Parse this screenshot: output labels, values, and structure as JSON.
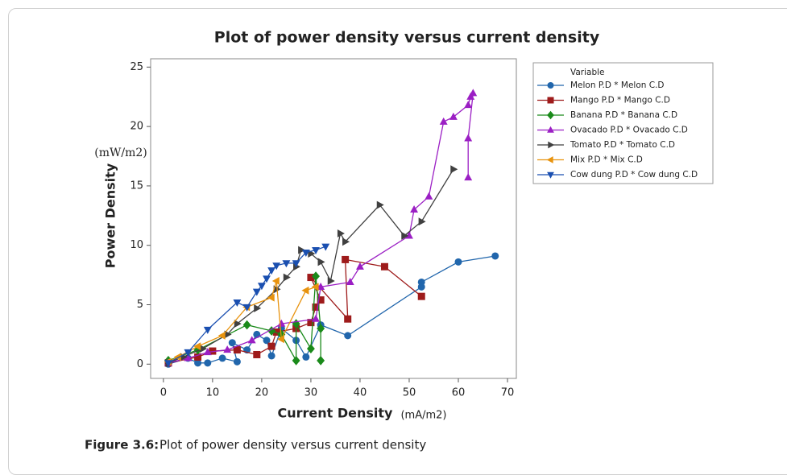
{
  "chart_data": {
    "type": "line",
    "title": "Plot of power density versus current density",
    "xlabel": "Current Density",
    "xunit": "(mA/m2)",
    "ylabel": "Power Density",
    "yunit": "(mW/m2)",
    "legend_title": "Variable",
    "legend": "outside-right",
    "xlim": [
      -2.6,
      71.8
    ],
    "ylim": [
      -1.2,
      25.7
    ],
    "xticks": [
      0,
      10,
      20,
      30,
      40,
      50,
      60,
      70
    ],
    "yticks": [
      0,
      5,
      10,
      15,
      20,
      25
    ],
    "series": [
      {
        "name": "Melon P.D * Melon C.D",
        "color": "#2166ac",
        "marker": "circle",
        "x": [
          1,
          5,
          7,
          9,
          12,
          15,
          14,
          17,
          19,
          21,
          22,
          24,
          27,
          29,
          32,
          37.5,
          52.5,
          52.5,
          60,
          67.5
        ],
        "values": [
          0,
          0.5,
          0.1,
          0.1,
          0.5,
          0.2,
          1.8,
          1.2,
          2.5,
          2,
          0.7,
          3,
          2,
          0.6,
          3.3,
          2.4,
          6.5,
          6.9,
          8.6,
          9.1
        ]
      },
      {
        "name": "Mango P.D * Mango C.D",
        "color": "#9e1b1b",
        "marker": "square",
        "x": [
          1,
          7,
          10,
          15,
          19,
          22,
          23,
          27,
          30,
          31,
          32,
          30,
          37.5,
          37,
          45,
          52.5
        ],
        "values": [
          0.1,
          0.6,
          1.1,
          1.2,
          0.8,
          1.5,
          2.7,
          3,
          3.5,
          4.8,
          5.4,
          7.3,
          3.8,
          8.8,
          8.2,
          5.7
        ]
      },
      {
        "name": "Banana P.D * Banana C.D",
        "color": "#1a8a1a",
        "marker": "diamond",
        "x": [
          1,
          7,
          17,
          22,
          24,
          27,
          27,
          30,
          31,
          32,
          32
        ],
        "values": [
          0.3,
          1.2,
          3.3,
          2.8,
          2.5,
          0.3,
          3.4,
          1.3,
          7.4,
          3,
          0.3
        ]
      },
      {
        "name": "Ovacado P.D * Ovacado C.D",
        "color": "#9b1fc4",
        "marker": "triangle-up",
        "x": [
          1,
          5,
          9,
          13,
          18,
          24,
          31,
          32,
          38,
          40,
          50,
          51,
          54,
          57,
          59,
          62,
          62.5,
          63,
          62,
          62
        ],
        "values": [
          0.1,
          0.5,
          1,
          1.2,
          2,
          3.4,
          3.8,
          6.5,
          6.9,
          8.2,
          10.8,
          13,
          14.1,
          20.4,
          20.8,
          21.8,
          22.5,
          22.8,
          19,
          15.7
        ]
      },
      {
        "name": "Tomato P.D * Tomato C.D",
        "color": "#404040",
        "marker": "triangle-right",
        "x": [
          1,
          4,
          8,
          13,
          15,
          19,
          23,
          25,
          27,
          28,
          30,
          32,
          34,
          36,
          37,
          44,
          49,
          52.5,
          59
        ],
        "values": [
          0.1,
          0.6,
          1.3,
          2.5,
          3.4,
          4.7,
          6.3,
          7.3,
          8.2,
          9.6,
          9.3,
          8.6,
          7,
          11,
          10.3,
          13.4,
          10.8,
          12,
          16.4
        ]
      },
      {
        "name": "Mix P.D * Mix C.D",
        "color": "#e8930e",
        "marker": "triangle-left",
        "x": [
          1,
          3,
          7,
          12,
          17,
          22,
          23,
          24,
          29,
          31
        ],
        "values": [
          0.2,
          0.6,
          1.5,
          2.4,
          4.8,
          5.6,
          7,
          2.1,
          6.2,
          6.5
        ]
      },
      {
        "name": "Cow dung P.D * Cow dung C.D",
        "color": "#1a4fb0",
        "marker": "triangle-down",
        "x": [
          1,
          5,
          9,
          15,
          17,
          19,
          20,
          21,
          22,
          23,
          25,
          27,
          29,
          31,
          33
        ],
        "values": [
          0.1,
          1,
          2.9,
          5.2,
          4.8,
          6.1,
          6.6,
          7.2,
          7.9,
          8.3,
          8.5,
          8.5,
          9.4,
          9.6,
          9.9
        ]
      }
    ]
  },
  "caption": {
    "label": "Figure 3.6:",
    "text": "Plot of power density versus current density"
  }
}
